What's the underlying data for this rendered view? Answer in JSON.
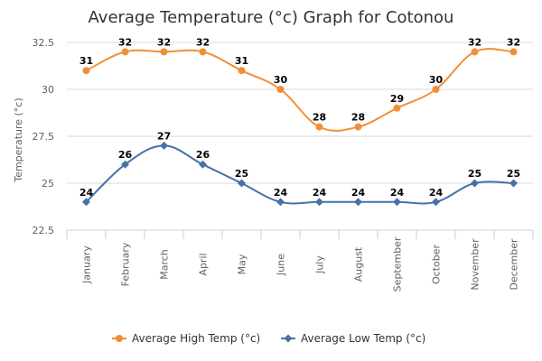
{
  "chart_data": {
    "type": "line",
    "title": "Average Temperature (°c) Graph for Cotonou",
    "ylabel": "Temperature (°c)",
    "xlabel": "",
    "ylim": [
      22.5,
      32.5
    ],
    "yticks": [
      "22.5",
      "25",
      "27.5",
      "30",
      "32.5"
    ],
    "categories": [
      "January",
      "February",
      "March",
      "April",
      "May",
      "June",
      "July",
      "August",
      "September",
      "October",
      "November",
      "December"
    ],
    "grid": "horizontal",
    "legend": "bottom",
    "series": [
      {
        "name": "Average High Temp (°c)",
        "color": "#f28f36",
        "marker": "circle",
        "values": [
          31,
          32,
          32,
          32,
          31,
          30,
          28,
          28,
          29,
          30,
          32,
          32
        ]
      },
      {
        "name": "Average Low Temp (°c)",
        "color": "#4572a7",
        "marker": "diamond",
        "values": [
          24,
          26,
          27,
          26,
          25,
          24,
          24,
          24,
          24,
          24,
          25,
          25
        ]
      }
    ]
  }
}
